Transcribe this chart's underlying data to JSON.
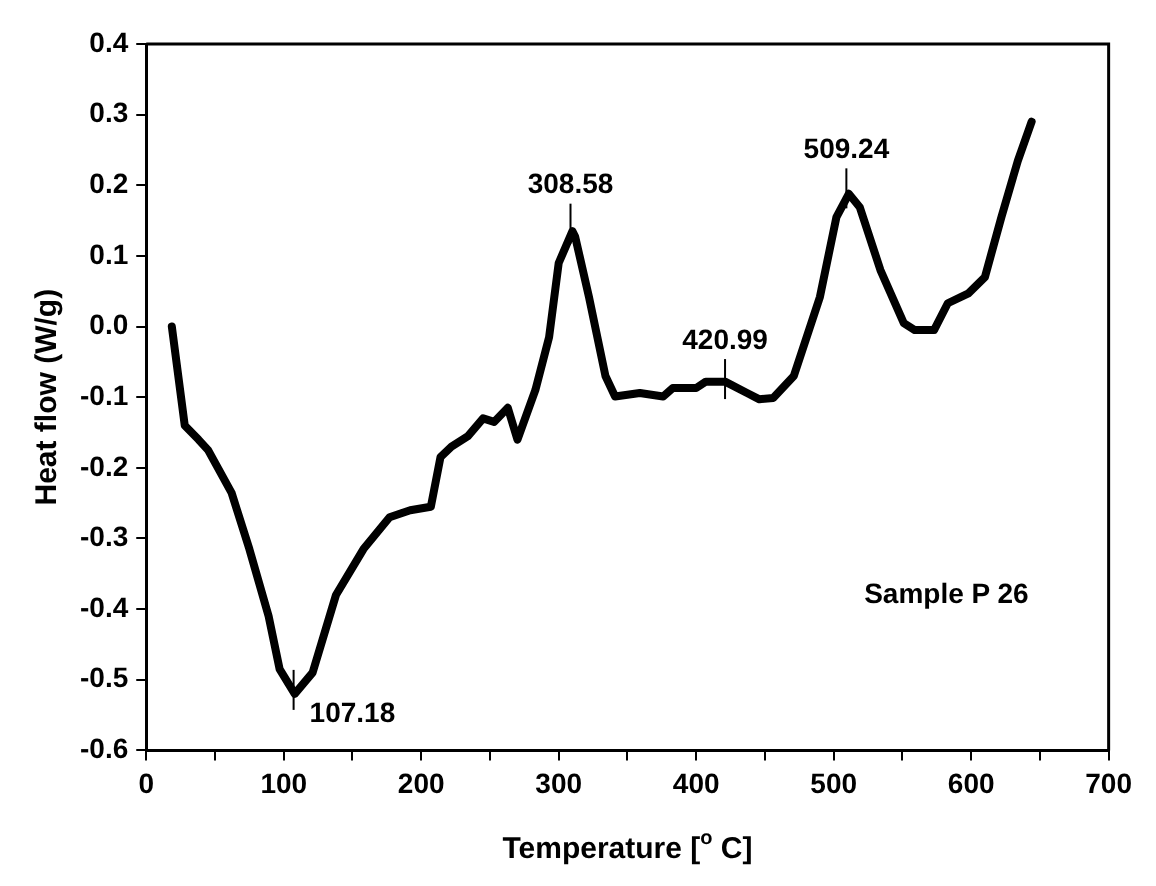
{
  "chart_data": {
    "type": "line",
    "xlabel": "Temperature [$^{o}$ C]",
    "ylabel": "Heat flow (W/g)",
    "x": [
      18.6,
      28,
      38,
      45,
      62,
      75,
      89,
      97,
      108,
      121,
      138,
      158,
      177,
      192,
      207,
      214,
      222,
      234,
      245,
      253,
      263,
      270,
      283,
      293,
      300,
      310,
      312,
      322,
      334,
      341,
      359,
      376,
      383,
      400,
      407,
      421,
      437,
      446,
      456,
      471,
      490,
      502,
      511,
      519,
      534,
      551,
      559,
      573,
      583,
      598,
      610,
      622,
      634,
      644
    ],
    "series": [
      {
        "color": "#000000",
        "values": [
          0.0,
          -0.14,
          -0.16,
          -0.175,
          -0.235,
          -0.315,
          -0.41,
          -0.485,
          -0.52,
          -0.49,
          -0.38,
          -0.315,
          -0.27,
          -0.26,
          -0.255,
          -0.185,
          -0.17,
          -0.155,
          -0.13,
          -0.135,
          -0.115,
          -0.16,
          -0.09,
          -0.015,
          0.09,
          0.135,
          0.127,
          0.042,
          -0.07,
          -0.099,
          -0.094,
          -0.099,
          -0.087,
          -0.087,
          -0.078,
          -0.078,
          -0.094,
          -0.103,
          -0.101,
          -0.07,
          0.042,
          0.155,
          0.188,
          0.169,
          0.08,
          0.005,
          -0.005,
          -0.005,
          0.033,
          0.047,
          0.07,
          0.155,
          0.235,
          0.29
        ]
      }
    ],
    "xlim": [
      0,
      700
    ],
    "xticks": [
      0,
      {
        "value": 50,
        "label": null
      },
      100,
      {
        "value": 150,
        "label": null
      },
      200,
      {
        "value": 250,
        "label": null
      },
      300,
      {
        "value": 350,
        "label": null
      },
      400,
      {
        "value": 450,
        "label": null
      },
      500,
      {
        "value": 550,
        "label": null
      },
      600,
      {
        "value": 650,
        "label": null
      },
      700
    ],
    "ylim": [
      -0.6,
      0.4
    ],
    "yticks": [
      -0.6,
      -0.5,
      -0.4,
      -0.3,
      -0.2,
      -0.1,
      {
        "value": 0,
        "label": "0.0"
      },
      0.1,
      0.2,
      0.3,
      0.4
    ],
    "grid": false,
    "legend": false,
    "marker": "none",
    "line_style": "solid",
    "annotations": [
      {
        "text": "107.18",
        "x": 107.18,
        "y": -0.52
      },
      {
        "text": "308.58",
        "x": 308.58,
        "y": 0.14
      },
      {
        "text": "420.99",
        "x": 420.99,
        "y": -0.08
      },
      {
        "text": "509.24",
        "x": 509.24,
        "y": 0.19
      },
      "Sample P 26"
    ]
  }
}
